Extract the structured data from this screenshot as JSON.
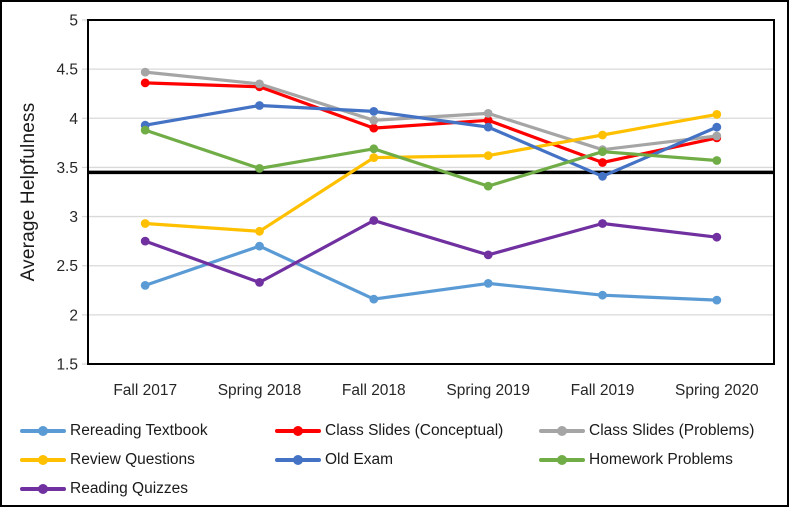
{
  "chart_data": {
    "type": "line",
    "title": "",
    "xlabel": "",
    "ylabel": "Average Helpfulness",
    "categories": [
      "Fall 2017",
      "Spring 2018",
      "Fall 2018",
      "Spring 2019",
      "Fall 2019",
      "Spring 2020"
    ],
    "ylim": [
      1.5,
      5
    ],
    "ytick_step": 0.5,
    "y_tick_labels": [
      "1.5",
      "2",
      "2.5",
      "3",
      "3.5",
      "4",
      "4.5",
      "5"
    ],
    "grid": true,
    "legend_position": "bottom",
    "reference_line": {
      "value": 3.45,
      "color": "#000000"
    },
    "series": [
      {
        "name": "Rereading Textbook",
        "color": "#5B9BD5",
        "values": [
          2.3,
          2.7,
          2.16,
          2.32,
          2.2,
          2.15
        ]
      },
      {
        "name": "Class Slides (Conceptual)",
        "color": "#FF0000",
        "values": [
          4.36,
          4.32,
          3.9,
          3.98,
          3.55,
          3.8
        ]
      },
      {
        "name": "Class Slides (Problems)",
        "color": "#A5A5A5",
        "values": [
          4.47,
          4.35,
          3.98,
          4.05,
          3.68,
          3.82
        ]
      },
      {
        "name": "Review Questions",
        "color": "#FFC000",
        "values": [
          2.93,
          2.85,
          3.6,
          3.62,
          3.83,
          4.04
        ]
      },
      {
        "name": "Old Exam",
        "color": "#4472C4",
        "values": [
          3.93,
          4.13,
          4.07,
          3.91,
          3.41,
          3.91
        ]
      },
      {
        "name": "Homework Problems",
        "color": "#70AD47",
        "values": [
          3.88,
          3.49,
          3.69,
          3.31,
          3.66,
          3.57
        ]
      },
      {
        "name": "Reading Quizzes",
        "color": "#7030A0",
        "values": [
          2.75,
          2.33,
          2.96,
          2.61,
          2.93,
          2.79
        ]
      }
    ],
    "colors": {
      "gridline": "#D9D9D9",
      "axis_border": "#000000",
      "tick_text": "#262626"
    }
  }
}
